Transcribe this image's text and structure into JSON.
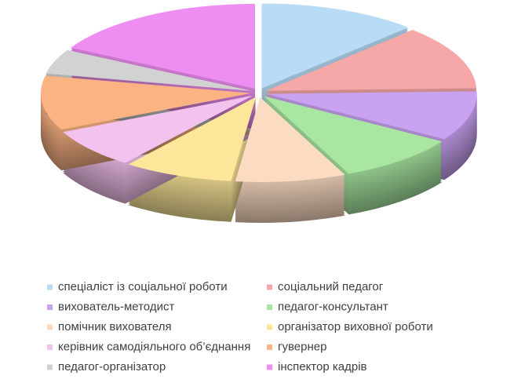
{
  "chart_data": {
    "type": "pie",
    "three_d": true,
    "exploded": true,
    "categories": [
      "спеціаліст із соціальної роботи",
      "соціальний педагог",
      "вихователь-методист",
      "педагог-консультант",
      "помічник вихователя",
      "організатор виховної роботи",
      "керівник самодіяльного об’єднання",
      "гувернер",
      "педагог-організатор",
      "інспектор кадрів"
    ],
    "values": [
      13,
      13,
      10,
      10,
      9,
      9,
      8,
      11,
      5,
      18
    ],
    "colors": [
      "#b8dcf6",
      "#f6a8a8",
      "#c9a2f2",
      "#a8e6a2",
      "#fbdcc2",
      "#fbe69a",
      "#f4c2ee",
      "#fbb384",
      "#d2d2d2",
      "#ee8ef2"
    ],
    "legend": "bottom"
  }
}
